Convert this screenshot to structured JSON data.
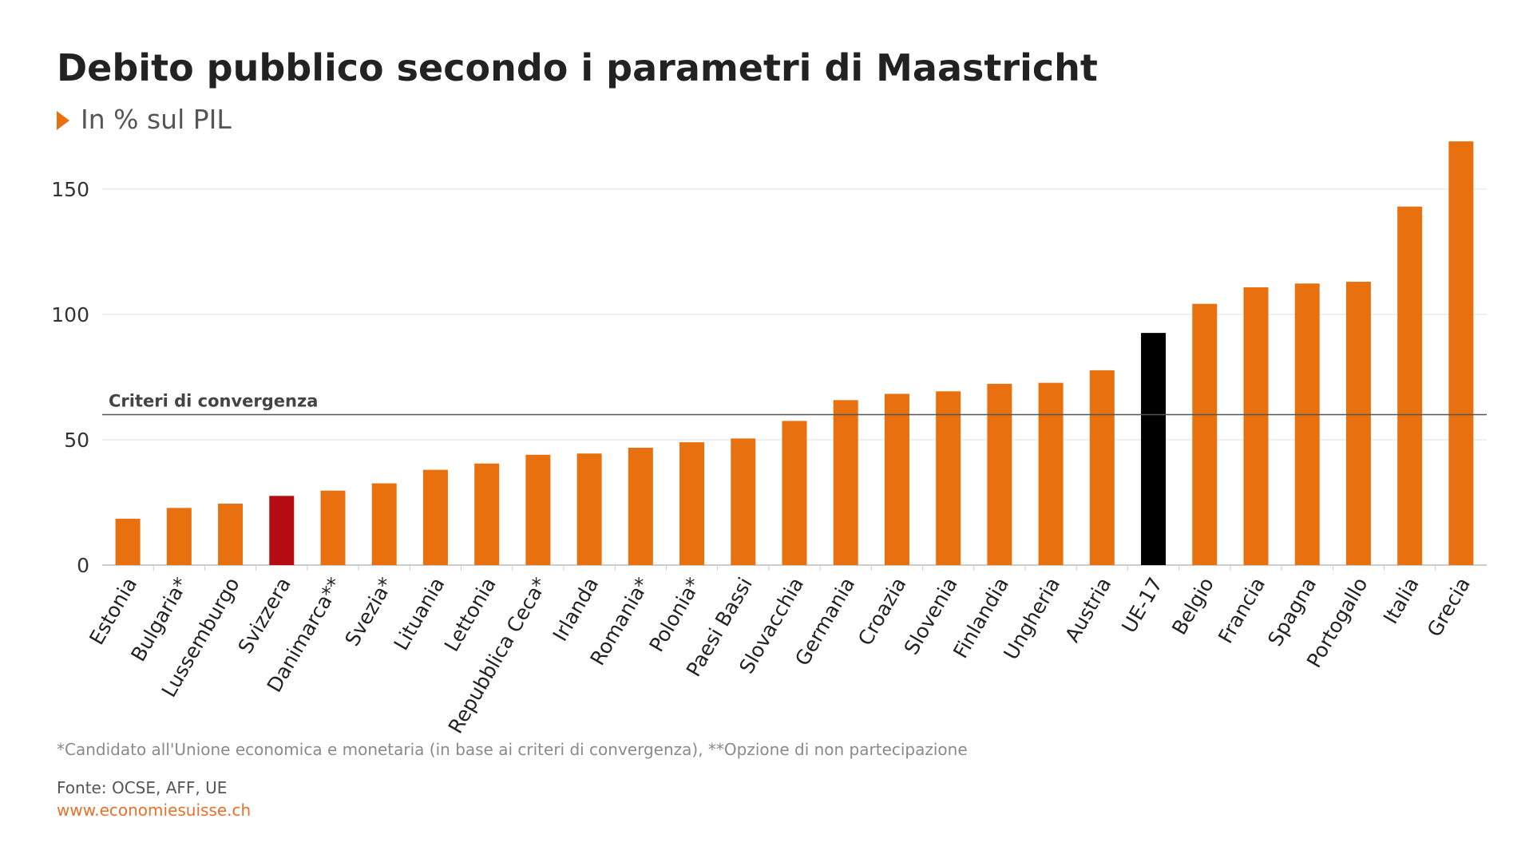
{
  "colors": {
    "bar": "#e8700f",
    "highlight": "#b30d12",
    "aggregate": "#000000",
    "grid": "#e0e0e0",
    "threshold": "#555555",
    "accent": "#e8702a"
  },
  "chart_data": {
    "type": "bar",
    "title": "Debito pubblico secondo i parametri di Maastricht",
    "subtitle": "In % sul PIL",
    "categories": [
      "Estonia",
      "Bulgaria*",
      "Lussemburgo",
      "Svizzera",
      "Danimarca**",
      "Svezia*",
      "Lituania",
      "Lettonia",
      "Repubblica Ceca*",
      "Irlanda",
      "Romania*",
      "Polonia*",
      "Paesi Bassi",
      "Slovacchia",
      "Germania",
      "Croazia",
      "Slovenia",
      "Finlandia",
      "Ungheria",
      "Austria",
      "UE-17",
      "Belgio",
      "Francia",
      "Spagna",
      "Portogallo",
      "Italia",
      "Grecia"
    ],
    "values": [
      18.5,
      22.8,
      24.5,
      27.6,
      29.7,
      32.6,
      38.0,
      40.5,
      44.0,
      44.5,
      46.8,
      49.0,
      50.5,
      57.5,
      65.8,
      68.3,
      69.3,
      72.3,
      72.7,
      77.7,
      92.6,
      104.2,
      110.8,
      112.3,
      113.0,
      143.0,
      169.0
    ],
    "highlight": [
      "Svizzera"
    ],
    "aggregate": [
      "UE-17"
    ],
    "ylim": [
      0,
      170
    ],
    "yticks": [
      0,
      50,
      100,
      150
    ],
    "xlabel": "",
    "ylabel": "",
    "grid": true,
    "reference_line": {
      "value": 60,
      "label": "Criteri di convergenza"
    }
  },
  "footer": {
    "footnote": "*Candidato all'Unione economica e monetaria (in base ai criteri di convergenza), **Opzione di non partecipazione",
    "source": "Fonte: OCSE, AFF, UE",
    "website": "www.economiesuisse.ch"
  }
}
